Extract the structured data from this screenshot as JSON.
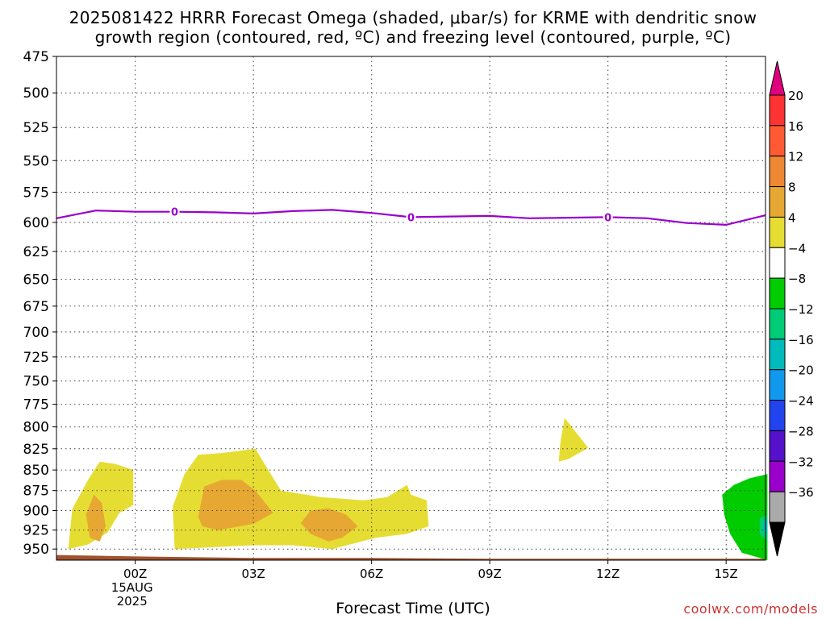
{
  "title_line1": "2025081422 HRRR Forecast Omega (shaded, μbar/s) for KRME with dendritic snow",
  "title_line2": "growth region (contoured, red, ºC) and freezing level (contoured, purple, ºC)",
  "credit": "coolwx.com/models",
  "colors": {
    "grid": "#444444",
    "freezing": "#9900cc",
    "terrain": "#a0522d"
  },
  "chart_data": {
    "type": "heatmap",
    "title": "2025081422 HRRR Forecast Omega (shaded, μbar/s) for KRME with dendritic snow growth region (contoured, red, ºC) and freezing level (contoured, purple, ºC)",
    "xlabel": "Forecast Time (UTC)",
    "ylabel": "",
    "x_unit": "hours since 2025-08-14 22Z",
    "xlim": [
      -2,
      16
    ],
    "ylim": [
      475,
      965
    ],
    "y_scale": "log-pressure, inverted",
    "grid": true,
    "x_ticks": [
      {
        "x": 0,
        "label": "00Z",
        "sub1": "15AUG",
        "sub2": "2025"
      },
      {
        "x": 3,
        "label": "03Z"
      },
      {
        "x": 6,
        "label": "06Z"
      },
      {
        "x": 9,
        "label": "09Z"
      },
      {
        "x": 12,
        "label": "12Z"
      },
      {
        "x": 15,
        "label": "15Z"
      }
    ],
    "y_ticks": [
      475,
      500,
      525,
      550,
      575,
      600,
      625,
      650,
      675,
      700,
      725,
      750,
      775,
      800,
      825,
      850,
      875,
      900,
      925,
      950
    ],
    "colorbar": {
      "labels": [
        "20",
        "16",
        "12",
        "8",
        "4",
        "−4",
        "−8",
        "−12",
        "−16",
        "−20",
        "−24",
        "−28",
        "−32",
        "−36"
      ],
      "top_color": "#e0007e",
      "bottom_color": "#000000",
      "boxes": [
        "#ff3333",
        "#ff5a33",
        "#ee8833",
        "#e6a833",
        "#e6dd33",
        "#ffffff",
        "#00cc00",
        "#00cc77",
        "#00bbbb",
        "#1199ee",
        "#2244ee",
        "#5511cc",
        "#9900cc",
        "#aaaaaa"
      ]
    },
    "freezing_level": {
      "label": "0",
      "x": [
        -2,
        -1,
        0,
        1,
        2,
        3,
        4,
        5,
        6,
        7,
        8,
        9,
        10,
        11,
        12,
        13,
        14,
        15,
        16
      ],
      "p": [
        596.5,
        590,
        591,
        591,
        591.5,
        592.5,
        590.5,
        589.5,
        592,
        595.5,
        595,
        594.5,
        596.5,
        596,
        595.5,
        596.5,
        600.5,
        602,
        594
      ],
      "label_x": [
        1,
        7,
        12
      ]
    },
    "omega_regions": [
      {
        "level": "4 to 8",
        "color": "#e6dd33",
        "points": [
          [
            -1.7,
            950
          ],
          [
            -1.6,
            898
          ],
          [
            -1.2,
            862
          ],
          [
            -0.9,
            840
          ],
          [
            -0.5,
            843
          ],
          [
            -0.05,
            850
          ],
          [
            -0.05,
            893
          ],
          [
            -0.4,
            903
          ],
          [
            -0.7,
            928
          ],
          [
            -1.2,
            944
          ]
        ]
      },
      {
        "level": "8 to 12",
        "color": "#e6a833",
        "points": [
          [
            -1.25,
            905
          ],
          [
            -1.05,
            880
          ],
          [
            -0.85,
            890
          ],
          [
            -0.75,
            920
          ],
          [
            -0.9,
            940
          ],
          [
            -1.15,
            935
          ]
        ]
      },
      {
        "level": "4 to 8",
        "color": "#e6dd33",
        "points": [
          [
            1.0,
            950
          ],
          [
            0.95,
            895
          ],
          [
            1.25,
            855
          ],
          [
            1.6,
            832
          ],
          [
            2.2,
            830
          ],
          [
            3.05,
            825
          ],
          [
            3.35,
            848
          ],
          [
            3.7,
            875
          ],
          [
            4.7,
            883
          ],
          [
            5.8,
            887
          ],
          [
            6.4,
            883
          ],
          [
            6.9,
            868
          ],
          [
            7.0,
            880
          ],
          [
            7.4,
            887
          ],
          [
            7.45,
            920
          ],
          [
            6.9,
            930
          ],
          [
            6.1,
            935
          ],
          [
            5.0,
            950
          ],
          [
            4.0,
            945
          ],
          [
            3.0,
            945
          ]
        ]
      },
      {
        "level": "8 to 12",
        "color": "#e6a833",
        "points": [
          [
            1.6,
            908
          ],
          [
            1.75,
            870
          ],
          [
            2.2,
            862
          ],
          [
            2.7,
            862
          ],
          [
            3.05,
            875
          ],
          [
            3.5,
            903
          ],
          [
            3.0,
            917
          ],
          [
            2.1,
            925
          ],
          [
            1.7,
            920
          ]
        ]
      },
      {
        "level": "8 to 12",
        "color": "#e6a833",
        "points": [
          [
            4.2,
            916
          ],
          [
            4.45,
            900
          ],
          [
            4.9,
            897
          ],
          [
            5.35,
            905
          ],
          [
            5.65,
            920
          ],
          [
            5.25,
            935
          ],
          [
            4.9,
            940
          ],
          [
            4.45,
            930
          ]
        ]
      },
      {
        "level": "4 to 8",
        "color": "#e6dd33",
        "points": [
          [
            10.75,
            840
          ],
          [
            10.8,
            815
          ],
          [
            10.9,
            790
          ],
          [
            11.5,
            824
          ],
          [
            11.0,
            837
          ]
        ]
      },
      {
        "level": "-4 to -8",
        "color": "#00cc00",
        "points": [
          [
            14.9,
            880
          ],
          [
            15.2,
            868
          ],
          [
            15.6,
            860
          ],
          [
            16.05,
            855
          ],
          [
            16.05,
            965
          ],
          [
            15.4,
            955
          ],
          [
            15.1,
            930
          ],
          [
            14.95,
            905
          ]
        ]
      },
      {
        "level": "-8 to -12",
        "color": "#00cc77",
        "points": [
          [
            15.85,
            910
          ],
          [
            16.05,
            905
          ],
          [
            16.05,
            940
          ],
          [
            15.85,
            930
          ]
        ]
      },
      {
        "level": "-12 to -16",
        "color": "#00bbbb",
        "points": [
          [
            15.95,
            915
          ],
          [
            16.05,
            912
          ],
          [
            16.05,
            930
          ],
          [
            15.95,
            925
          ]
        ]
      }
    ],
    "terrain": {
      "x": [
        -2,
        0,
        3,
        6,
        9,
        12,
        15,
        16
      ],
      "p": [
        958,
        960,
        962,
        962,
        963,
        963,
        963,
        963
      ]
    }
  }
}
